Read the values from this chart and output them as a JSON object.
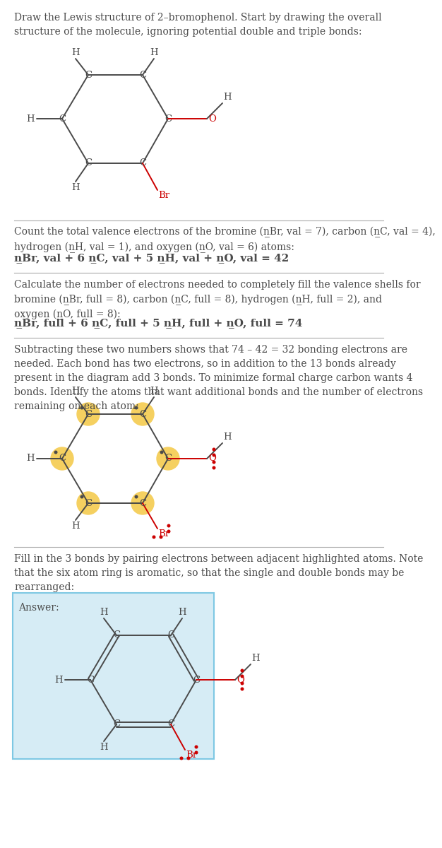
{
  "bg": "#ffffff",
  "tc": "#4a4a4a",
  "oc": "#cc0000",
  "brc": "#cc0000",
  "hc": "#f5d060",
  "sep_color": "#aaaaaa",
  "ans_bg": "#d6ecf5",
  "ans_border": "#7ec8e3",
  "title": "Draw the Lewis structure of 2–bromophenol. Start by drawing the overall\nstructure of the molecule, ignoring potential double and triple bonds:",
  "s2_line1": "Count the total valence electrons of the bromine (n",
  "s2_line1b": "Br, val",
  "s4_text": "Subtracting these two numbers shows that 74 – 42 = 32 bonding electrons are\nneeded. Each bond has two electrons, so in addition to the 13 bonds already\npresent in the diagram add 3 bonds. To minimize formal charge carbon wants 4\nbonds. Identify the atoms that want additional bonds and the number of electrons\nremaining on each atom:",
  "s5_text": "Fill in the 3 bonds by pairing electrons between adjacent highlighted atoms. Note\nthat the six atom ring is aromatic, so that the single and double bonds may be\nrearranged:",
  "answer_label": "Answer:"
}
